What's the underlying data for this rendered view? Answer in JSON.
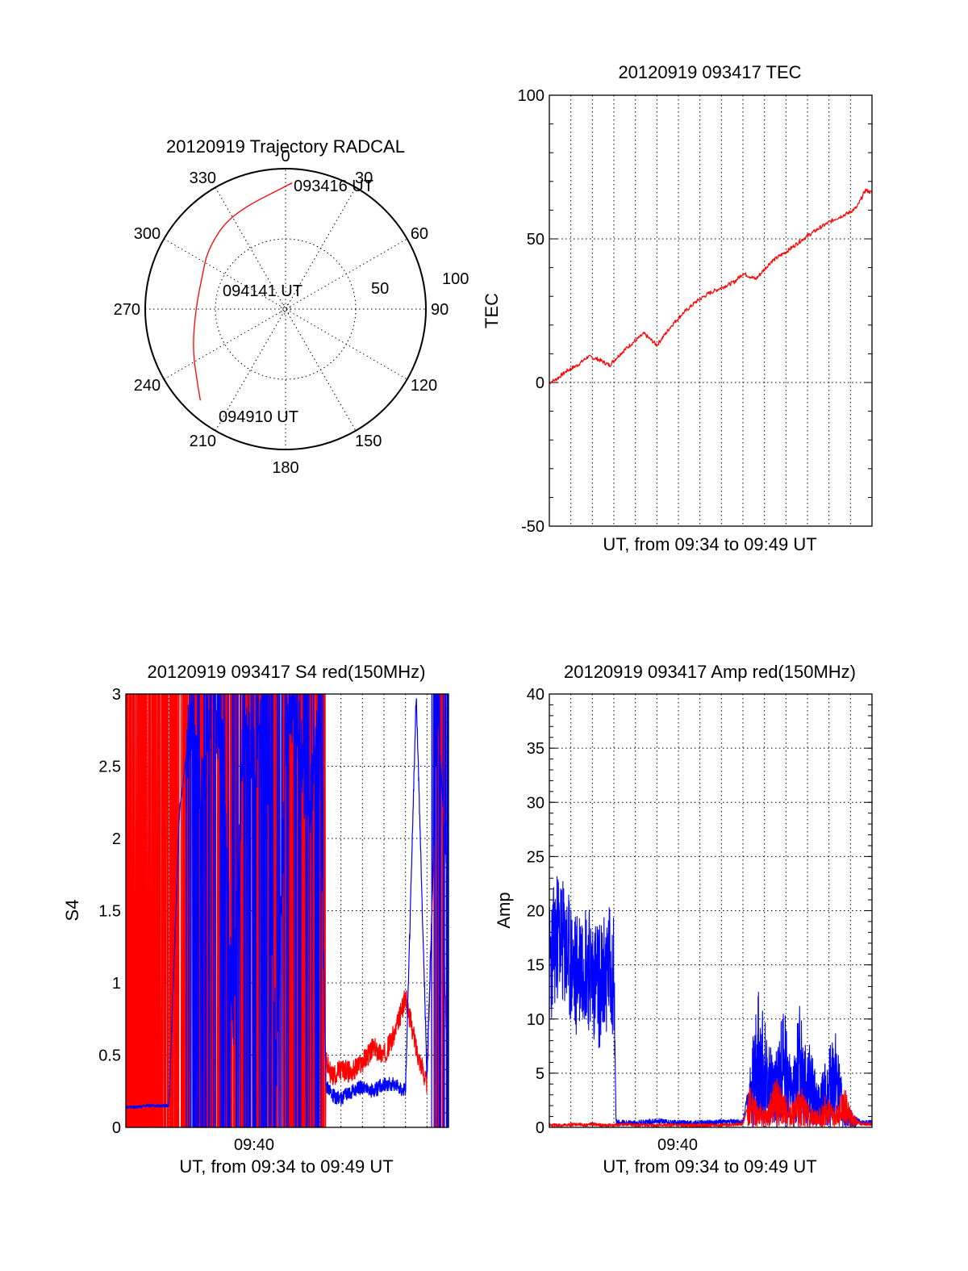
{
  "chart_data": [
    {
      "type": "polar",
      "title": "20120919 Trajectory RADCAL",
      "angle_labels": [
        "0",
        "30",
        "60",
        "90",
        "120",
        "150",
        "180",
        "210",
        "240",
        "270",
        "300",
        "330"
      ],
      "radius_labels": [
        "50",
        "100"
      ],
      "rlim": [
        0,
        100
      ],
      "annotations": [
        "093416 UT",
        "094141 UT",
        "094910 UT"
      ],
      "series": [
        {
          "color": "#ff0000",
          "points": [
            {
              "az": 3,
              "zen": 90
            },
            {
              "az": 330,
              "zen": 78
            },
            {
              "az": 308,
              "zen": 70
            },
            {
              "az": 292,
              "zen": 64
            },
            {
              "az": 270,
              "zen": 64
            },
            {
              "az": 247,
              "zen": 72
            },
            {
              "az": 230,
              "zen": 82
            },
            {
              "az": 223,
              "zen": 89
            }
          ]
        }
      ]
    },
    {
      "type": "line",
      "title": "20120919 093417 TEC",
      "ylabel": "TEC",
      "xlabel": "UT, from 09:34 to 09:49 UT",
      "ylim": [
        -50,
        100
      ],
      "yticks": [
        "-50",
        "0",
        "50",
        "100"
      ],
      "x_minutes": [
        0,
        0.3,
        0.8,
        1.3,
        1.8,
        2.3,
        2.8,
        3.3,
        3.9,
        4.4,
        5.0,
        5.7,
        6.2,
        6.8,
        7.4,
        8.0,
        8.6,
        9.0,
        9.6,
        10.3,
        11.1,
        11.8,
        12.6,
        13.3,
        13.9,
        14.3,
        14.7,
        15.0
      ],
      "series": [
        {
          "color": "#ff0000",
          "values": [
            0,
            1,
            4,
            6,
            9,
            8,
            6,
            10,
            14,
            17,
            13,
            20,
            24,
            28,
            31,
            33,
            35,
            38,
            36,
            42,
            46,
            50,
            54,
            57,
            59,
            61,
            67,
            66
          ]
        }
      ]
    },
    {
      "type": "line",
      "title": "20120919 093417 S4 red(150MHz)",
      "ylabel": "S4",
      "xlabel": "UT, from 09:34 to 09:49 UT",
      "xtick_labels": [
        "09:40"
      ],
      "ylim": [
        0,
        3
      ],
      "yticks": [
        "0",
        "0.5",
        "1",
        "1.5",
        "2",
        "2.5",
        "3"
      ],
      "x_minutes": [
        0,
        0.5,
        1,
        1.5,
        2,
        2.5,
        3,
        3.5,
        4,
        4.5,
        5,
        5.5,
        6,
        6.5,
        7,
        7.5,
        8,
        8.5,
        9,
        9.3,
        9.6,
        10.0,
        10.5,
        11.0,
        11.5,
        12.0,
        12.5,
        13.0,
        13.5,
        14.0,
        14.5,
        15.0
      ],
      "series": [
        {
          "name": "red",
          "color": "#ff0000",
          "values": [
            3,
            0,
            3,
            0,
            3,
            0,
            3,
            0,
            3,
            0,
            3,
            0,
            3,
            0,
            3,
            0,
            3,
            0,
            3,
            0.45,
            0.35,
            0.4,
            0.38,
            0.45,
            0.55,
            0.5,
            0.65,
            0.9,
            0.55,
            0.3,
            3,
            0
          ]
        },
        {
          "name": "blue",
          "color": "#0000ff",
          "values": [
            0.14,
            0.14,
            0.15,
            0.15,
            0.15,
            2.2,
            2.8,
            2.3,
            3.0,
            2.6,
            0.7,
            2.9,
            2.5,
            3.0,
            0.4,
            3.0,
            2.8,
            2.1,
            3.0,
            0.3,
            0.22,
            0.2,
            0.25,
            0.28,
            0.25,
            0.3,
            0.3,
            0.25,
            3.0,
            0.35,
            2.9,
            1.5
          ]
        }
      ]
    },
    {
      "type": "line",
      "title": "20120919 093417 Amp red(150MHz)",
      "ylabel": "Amp",
      "xlabel": "UT, from 09:34 to 09:49 UT",
      "xtick_labels": [
        "09:40"
      ],
      "ylim": [
        0,
        40
      ],
      "yticks": [
        "0",
        "5",
        "10",
        "15",
        "20",
        "25",
        "30",
        "35",
        "40"
      ],
      "x_minutes": [
        0,
        0.4,
        0.8,
        1.2,
        1.6,
        2.0,
        2.4,
        2.8,
        3.0,
        3.1,
        3.5,
        4.0,
        5.0,
        6.0,
        7.0,
        8.0,
        9.0,
        9.3,
        9.7,
        10.1,
        10.5,
        10.9,
        11.3,
        11.7,
        12.1,
        12.5,
        12.9,
        13.3,
        13.7,
        14.1,
        14.5,
        15.0
      ],
      "series": [
        {
          "name": "blue",
          "color": "#0000ff",
          "values": [
            15,
            18,
            16,
            14,
            16,
            14,
            13,
            15,
            14,
            0.5,
            0.4,
            0.4,
            0.6,
            0.4,
            0.4,
            0.5,
            0.5,
            4,
            10,
            7,
            5,
            9,
            4,
            10,
            6,
            3,
            5,
            7,
            2,
            1,
            0.4,
            0.4
          ]
        },
        {
          "name": "red",
          "color": "#ff0000",
          "values": [
            0.2,
            0.2,
            0.2,
            0.3,
            0.2,
            0.3,
            0.2,
            0.2,
            0.2,
            0.2,
            0.3,
            0.2,
            0.2,
            0.2,
            0.2,
            0.2,
            0.3,
            2.5,
            1.5,
            1.0,
            3.0,
            2.0,
            1.5,
            2.5,
            1.2,
            1.0,
            2.0,
            1.0,
            2.5,
            0.8,
            0.3,
            0.3
          ]
        }
      ]
    }
  ]
}
